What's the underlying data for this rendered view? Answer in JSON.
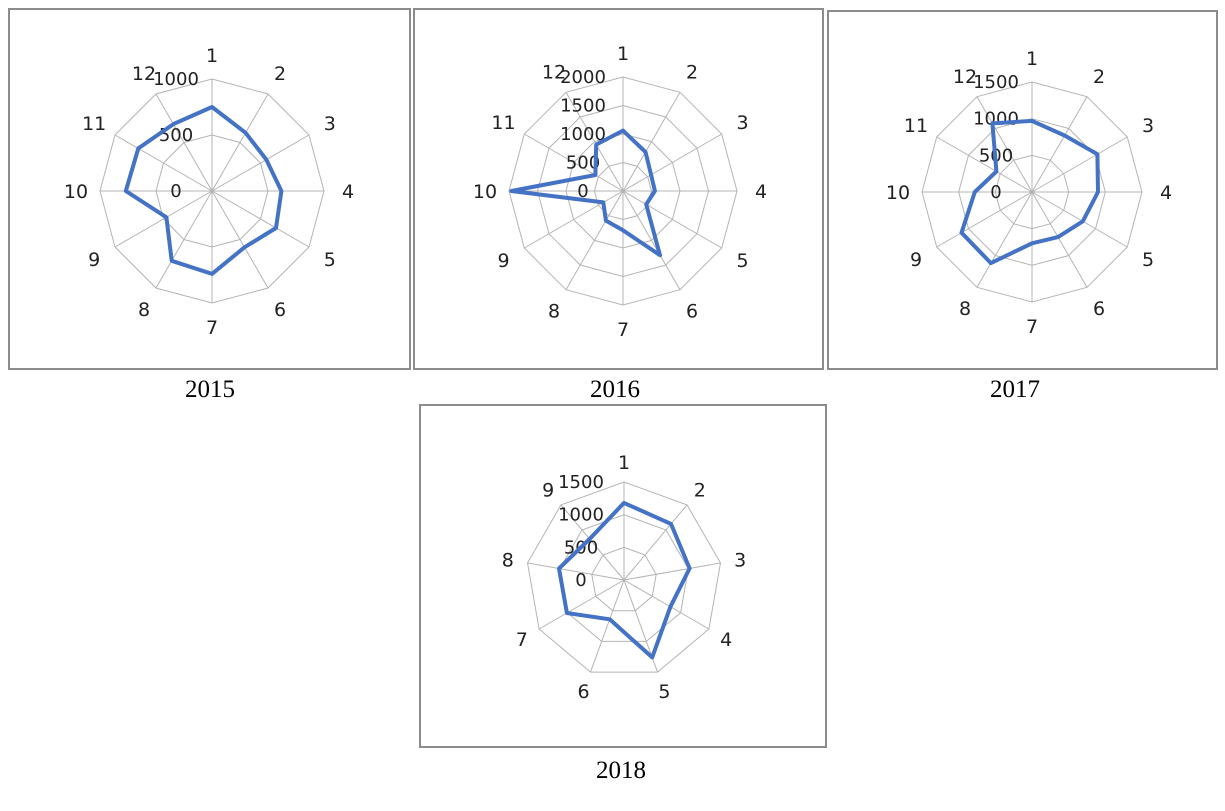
{
  "chart_data": [
    {
      "type": "radar",
      "caption": "2015",
      "categories": [
        "1",
        "2",
        "3",
        "4",
        "5",
        "6",
        "7",
        "8",
        "9",
        "10",
        "11",
        "12"
      ],
      "tick_labels": [
        "0",
        "500",
        "1000"
      ],
      "rmax": 1000,
      "grid": true,
      "series": [
        {
          "color": "#4472c4",
          "values": [
            750,
            600,
            560,
            620,
            660,
            580,
            740,
            720,
            470,
            770,
            760,
            690
          ]
        }
      ]
    },
    {
      "type": "radar",
      "caption": "2016",
      "categories": [
        "1",
        "2",
        "3",
        "4",
        "5",
        "6",
        "7",
        "8",
        "9",
        "10",
        "11",
        "12"
      ],
      "tick_labels": [
        "0",
        "500",
        "1000",
        "1500",
        "2000"
      ],
      "rmax": 2000,
      "grid": true,
      "series": [
        {
          "color": "#4472c4",
          "values": [
            1060,
            790,
            570,
            560,
            470,
            1300,
            690,
            600,
            400,
            1960,
            560,
            940
          ]
        }
      ]
    },
    {
      "type": "radar",
      "caption": "2017",
      "categories": [
        "1",
        "2",
        "3",
        "4",
        "5",
        "6",
        "7",
        "8",
        "9",
        "10",
        "11",
        "12"
      ],
      "tick_labels": [
        "0",
        "500",
        "1000",
        "1500"
      ],
      "rmax": 1500,
      "grid": true,
      "series": [
        {
          "color": "#4472c4",
          "values": [
            970,
            890,
            1030,
            900,
            800,
            710,
            700,
            1120,
            1110,
            780,
            560,
            1080
          ]
        }
      ]
    },
    {
      "type": "radar",
      "caption": "2018",
      "categories": [
        "1",
        "2",
        "3",
        "4",
        "5",
        "6",
        "7",
        "8",
        "9"
      ],
      "tick_labels": [
        "0",
        "500",
        "1000",
        "1500"
      ],
      "rmax": 1500,
      "grid": true,
      "series": [
        {
          "color": "#4472c4",
          "values": [
            1180,
            1120,
            1020,
            820,
            1260,
            640,
            1010,
            1010,
            820
          ]
        }
      ]
    }
  ]
}
